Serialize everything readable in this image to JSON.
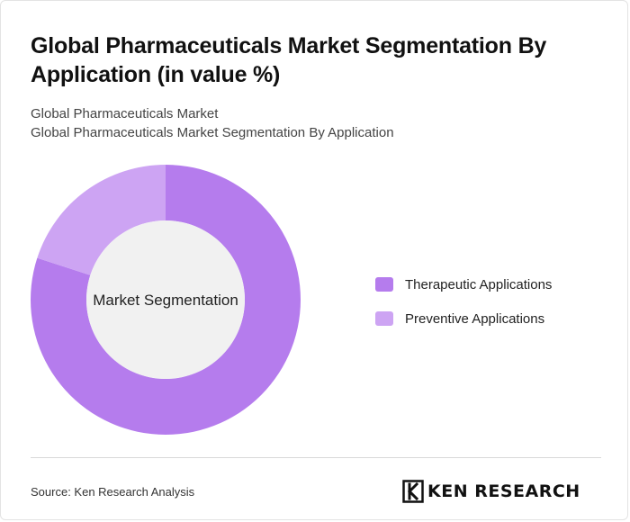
{
  "header": {
    "title": "Global Pharmaceuticals Market Segmentation By Application (in value %)",
    "subtitle_line1": "Global Pharmaceuticals Market",
    "subtitle_line2": "Global Pharmaceuticals Market Segmentation By Application"
  },
  "chart_data": {
    "type": "pie",
    "variant": "donut",
    "center_label": "Market Segmentation",
    "categories": [
      "Therapeutic Applications",
      "Preventive Applications"
    ],
    "values": [
      80,
      20
    ],
    "colors": [
      "#b57ced",
      "#cda4f3"
    ],
    "legend_position": "right"
  },
  "footer": {
    "source": "Source: Ken Research Analysis",
    "logo_text": "KEN RESEARCH"
  }
}
